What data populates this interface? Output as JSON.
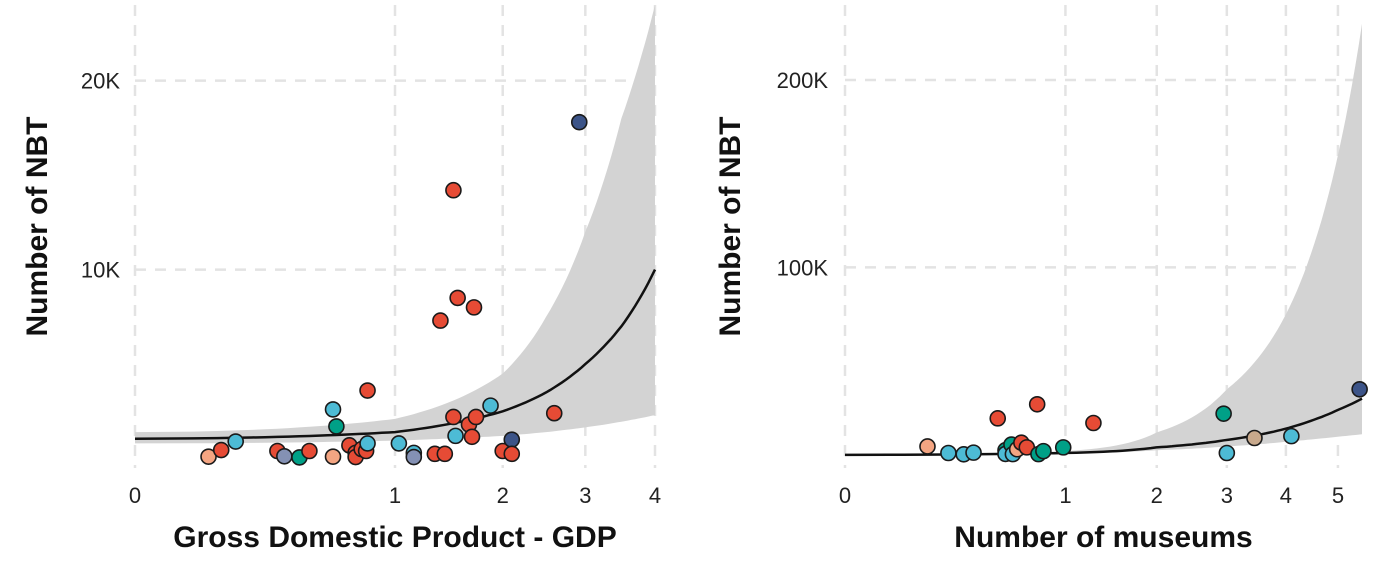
{
  "chart_data": [
    {
      "type": "scatter",
      "xlabel": "Gross Domestic Product - GDP",
      "ylabel": "Number of NBT",
      "x_scale": "sqrt",
      "x_ticks": [
        0,
        1,
        2,
        3,
        4
      ],
      "x_tick_labels": [
        "0",
        "1",
        "2",
        "3",
        "4"
      ],
      "y_ticks": [
        10000,
        20000
      ],
      "y_tick_labels": [
        "10K",
        "20K"
      ],
      "xlim": [
        0,
        4
      ],
      "ylim": [
        -500,
        24000
      ],
      "grid": true,
      "legend": "none",
      "points": [
        {
          "x": 0.08,
          "y": 100,
          "color": "#f4a582"
        },
        {
          "x": 0.11,
          "y": 450,
          "color": "#e64b35"
        },
        {
          "x": 0.15,
          "y": 900,
          "color": "#4dbbd5"
        },
        {
          "x": 0.3,
          "y": 400,
          "color": "#e64b35"
        },
        {
          "x": 0.33,
          "y": 120,
          "color": "#8491b4"
        },
        {
          "x": 0.4,
          "y": 60,
          "color": "#00a087"
        },
        {
          "x": 0.45,
          "y": 400,
          "color": "#e64b35"
        },
        {
          "x": 0.58,
          "y": 100,
          "color": "#f4a582"
        },
        {
          "x": 0.58,
          "y": 2600,
          "color": "#4dbbd5"
        },
        {
          "x": 0.6,
          "y": 1700,
          "color": "#00a087"
        },
        {
          "x": 0.68,
          "y": 700,
          "color": "#e64b35"
        },
        {
          "x": 0.72,
          "y": 300,
          "color": "#e64b35"
        },
        {
          "x": 0.72,
          "y": 80,
          "color": "#e64b35"
        },
        {
          "x": 0.76,
          "y": 500,
          "color": "#e64b35"
        },
        {
          "x": 0.79,
          "y": 400,
          "color": "#e64b35"
        },
        {
          "x": 0.8,
          "y": 3600,
          "color": "#e64b35"
        },
        {
          "x": 0.8,
          "y": 800,
          "color": "#4dbbd5"
        },
        {
          "x": 1.03,
          "y": 800,
          "color": "#4dbbd5"
        },
        {
          "x": 1.15,
          "y": 300,
          "color": "#4dbbd5"
        },
        {
          "x": 1.15,
          "y": 80,
          "color": "#8491b4"
        },
        {
          "x": 1.33,
          "y": 250,
          "color": "#e64b35"
        },
        {
          "x": 1.38,
          "y": 7300,
          "color": "#e64b35"
        },
        {
          "x": 1.42,
          "y": 250,
          "color": "#e64b35"
        },
        {
          "x": 1.5,
          "y": 2200,
          "color": "#e64b35"
        },
        {
          "x": 1.52,
          "y": 1200,
          "color": "#4dbbd5"
        },
        {
          "x": 1.5,
          "y": 14200,
          "color": "#e64b35"
        },
        {
          "x": 1.54,
          "y": 8500,
          "color": "#e64b35"
        },
        {
          "x": 1.65,
          "y": 1800,
          "color": "#e64b35"
        },
        {
          "x": 1.68,
          "y": 1150,
          "color": "#e64b35"
        },
        {
          "x": 1.7,
          "y": 8000,
          "color": "#e64b35"
        },
        {
          "x": 1.72,
          "y": 2200,
          "color": "#e64b35"
        },
        {
          "x": 1.87,
          "y": 2800,
          "color": "#4dbbd5"
        },
        {
          "x": 2.0,
          "y": 400,
          "color": "#e64b35"
        },
        {
          "x": 2.1,
          "y": 1000,
          "color": "#3c5488"
        },
        {
          "x": 2.1,
          "y": 250,
          "color": "#e64b35"
        },
        {
          "x": 2.6,
          "y": 2400,
          "color": "#e64b35"
        },
        {
          "x": 2.92,
          "y": 17800,
          "color": "#3c5488"
        }
      ],
      "fit": {
        "x": [
          0,
          1,
          2,
          2.5,
          3,
          3.5,
          4
        ],
        "y": [
          1050,
          1400,
          2500,
          3500,
          5000,
          7000,
          10000
        ],
        "y_lower": [
          800,
          950,
          1200,
          1400,
          1650,
          1950,
          2300
        ],
        "y_upper": [
          1400,
          2100,
          4500,
          7500,
          12000,
          18000,
          24000
        ]
      }
    },
    {
      "type": "scatter",
      "xlabel": "Number of museums",
      "ylabel": "Number of NBT",
      "x_scale": "sqrt",
      "x_ticks": [
        0,
        1,
        2,
        3,
        4,
        5
      ],
      "x_tick_labels": [
        "0",
        "1",
        "2",
        "3",
        "4",
        "5"
      ],
      "y_ticks": [
        100000,
        200000
      ],
      "y_tick_labels": [
        "100K",
        "200K"
      ],
      "xlim": [
        0,
        5.5
      ],
      "ylim": [
        -7000,
        240000
      ],
      "grid": true,
      "legend": "none",
      "points": [
        {
          "x": 0.14,
          "y": 4500,
          "color": "#f4a582"
        },
        {
          "x": 0.22,
          "y": 1000,
          "color": "#4dbbd5"
        },
        {
          "x": 0.29,
          "y": 300,
          "color": "#4dbbd5"
        },
        {
          "x": 0.34,
          "y": 1200,
          "color": "#4dbbd5"
        },
        {
          "x": 0.48,
          "y": 19500,
          "color": "#e64b35"
        },
        {
          "x": 0.53,
          "y": 2500,
          "color": "#00a087"
        },
        {
          "x": 0.53,
          "y": 500,
          "color": "#4dbbd5"
        },
        {
          "x": 0.57,
          "y": 5500,
          "color": "#00a087"
        },
        {
          "x": 0.58,
          "y": 400,
          "color": "#4dbbd5"
        },
        {
          "x": 0.61,
          "y": 3000,
          "color": "#f4a582"
        },
        {
          "x": 0.64,
          "y": 6500,
          "color": "#e64b35"
        },
        {
          "x": 0.68,
          "y": 4000,
          "color": "#e64b35"
        },
        {
          "x": 0.76,
          "y": 27000,
          "color": "#e64b35"
        },
        {
          "x": 0.77,
          "y": 400,
          "color": "#00a087"
        },
        {
          "x": 0.81,
          "y": 2000,
          "color": "#00a087"
        },
        {
          "x": 0.98,
          "y": 4000,
          "color": "#00a087"
        },
        {
          "x": 1.27,
          "y": 17000,
          "color": "#e64b35"
        },
        {
          "x": 2.95,
          "y": 22000,
          "color": "#00a087"
        },
        {
          "x": 3.0,
          "y": 1000,
          "color": "#4dbbd5"
        },
        {
          "x": 3.45,
          "y": 9000,
          "color": "#c8a98c"
        },
        {
          "x": 4.1,
          "y": 10000,
          "color": "#4dbbd5"
        },
        {
          "x": 5.45,
          "y": 35000,
          "color": "#3c5488"
        }
      ],
      "fit": {
        "x": [
          0,
          1,
          2,
          3,
          4,
          4.5,
          5,
          5.5
        ],
        "y": [
          0,
          1000,
          4000,
          8000,
          14000,
          18500,
          24000,
          30000
        ],
        "y_lower": [
          0,
          700,
          2500,
          4500,
          7000,
          8300,
          9700,
          11000
        ],
        "y_upper": [
          0,
          2000,
          12000,
          35000,
          75000,
          110000,
          160000,
          230000
        ]
      }
    }
  ]
}
